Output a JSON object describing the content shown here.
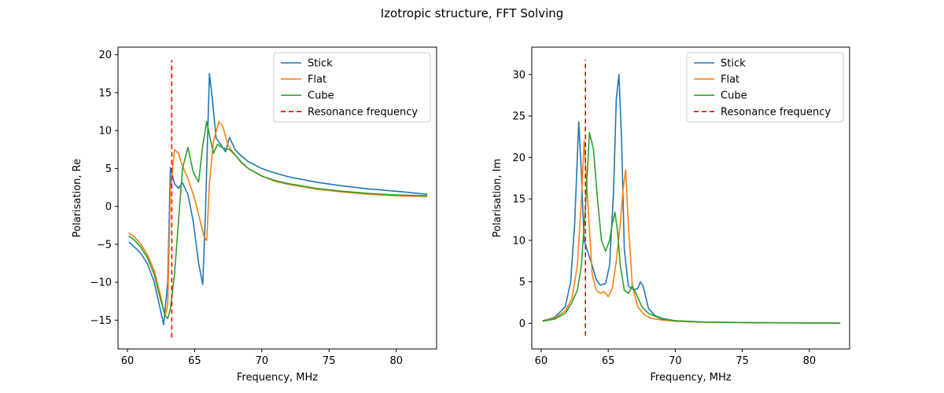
{
  "figure": {
    "title": "Izotropic structure, FFT Solving"
  },
  "colors": {
    "stick": "#1f77b4",
    "flat": "#ff7f0e",
    "cube": "#2ca02c",
    "resonance": "#ff0000"
  },
  "chart_data": [
    {
      "type": "line",
      "xlabel": "Frequency, MHz",
      "ylabel": "Polarisation, Re",
      "xlim": [
        59.3,
        83.0
      ],
      "ylim": [
        -18.8,
        21.0
      ],
      "xticks": [
        60,
        65,
        70,
        75,
        80
      ],
      "yticks": [
        -15,
        -10,
        -5,
        0,
        5,
        10,
        15,
        20
      ],
      "legend": {
        "position": "top-right",
        "entries": [
          "Stick",
          "Flat",
          "Cube",
          "Resonance frequency"
        ]
      },
      "resonance": {
        "x": 63.3,
        "y_range": [
          -17.3,
          19.3
        ],
        "style": "dashed"
      },
      "series": [
        {
          "name": "Stick",
          "x": [
            60.1,
            60.5,
            61,
            61.5,
            62,
            62.4,
            62.7,
            63,
            63.2,
            63.5,
            63.8,
            64.1,
            64.5,
            64.9,
            65.3,
            65.6,
            65.8,
            66.1,
            66.3,
            66.6,
            67,
            67.3,
            67.6,
            68,
            68.5,
            69,
            70,
            71,
            72,
            74,
            76,
            78,
            80,
            82.3
          ],
          "y": [
            -4.7,
            -5.3,
            -6.2,
            -7.6,
            -10,
            -13.2,
            -15.6,
            -10,
            5.1,
            3.0,
            2.4,
            3.1,
            1.6,
            -2,
            -7.5,
            -10.3,
            -1,
            17.5,
            14.5,
            9,
            8,
            7.2,
            9.1,
            7.5,
            6.6,
            5.9,
            5,
            4.4,
            3.9,
            3.2,
            2.7,
            2.3,
            2,
            1.6
          ]
        },
        {
          "name": "Flat",
          "x": [
            60.1,
            60.5,
            61,
            61.5,
            62,
            62.5,
            62.8,
            63,
            63.2,
            63.5,
            63.8,
            64,
            64.3,
            64.6,
            65,
            65.4,
            65.7,
            65.9,
            66.1,
            66.4,
            66.8,
            67.1,
            67.5,
            68,
            68.5,
            69,
            70,
            71,
            72,
            74,
            76,
            78,
            80,
            82.3
          ],
          "y": [
            -3.5,
            -4,
            -5,
            -6.4,
            -8.5,
            -12,
            -14.5,
            -13,
            2,
            7.5,
            7,
            5.8,
            4.5,
            3.2,
            1,
            -1.8,
            -4,
            -4.5,
            3,
            8.5,
            11.2,
            10.5,
            8,
            6.8,
            5.7,
            5,
            4,
            3.3,
            2.9,
            2.3,
            1.9,
            1.6,
            1.4,
            1.3
          ]
        },
        {
          "name": "Cube",
          "x": [
            60.1,
            60.5,
            61,
            61.5,
            62,
            62.5,
            62.8,
            63,
            63.2,
            63.5,
            63.8,
            64.1,
            64.5,
            64.9,
            65.3,
            65.6,
            65.9,
            66.1,
            66.4,
            66.7,
            67,
            67.3,
            67.6,
            68,
            68.5,
            69,
            70,
            71,
            72,
            74,
            76,
            78,
            80,
            82.3
          ],
          "y": [
            -3.9,
            -4.4,
            -5.4,
            -6.8,
            -9,
            -12.5,
            -14.4,
            -14.8,
            -13.5,
            -9,
            -2,
            5,
            7.8,
            4.5,
            3.2,
            8,
            11.2,
            9.5,
            7,
            8.2,
            7.8,
            7.6,
            7.5,
            6.8,
            5.8,
            5,
            4,
            3.4,
            3,
            2.4,
            2,
            1.7,
            1.5,
            1.4
          ]
        }
      ]
    },
    {
      "type": "line",
      "xlabel": "Frequency, MHz",
      "ylabel": "Polarisation, Im",
      "xlim": [
        59.3,
        83.0
      ],
      "ylim": [
        -3.1,
        33.3
      ],
      "xticks": [
        60,
        65,
        70,
        75,
        80
      ],
      "yticks": [
        0,
        5,
        10,
        15,
        20,
        25,
        30
      ],
      "legend": {
        "position": "top-right",
        "entries": [
          "Stick",
          "Flat",
          "Cube",
          "Resonance frequency"
        ]
      },
      "resonance": {
        "x": 63.3,
        "y_range": [
          -1.5,
          31.8
        ],
        "style": "dashed"
      },
      "series": [
        {
          "name": "Stick",
          "x": [
            60.1,
            61,
            61.8,
            62.2,
            62.5,
            62.8,
            63,
            63.2,
            63.5,
            63.8,
            64.1,
            64.4,
            64.8,
            65.1,
            65.4,
            65.6,
            65.8,
            66,
            66.2,
            66.5,
            66.9,
            67.2,
            67.4,
            67.6,
            68,
            68.5,
            69,
            70,
            72,
            76,
            80,
            82.3
          ],
          "y": [
            0.3,
            0.7,
            2,
            5,
            12,
            24.3,
            18,
            10,
            8.5,
            7,
            5.3,
            4.6,
            4.8,
            7,
            16,
            27,
            30,
            22,
            9,
            4.5,
            4,
            4.2,
            5,
            4.5,
            1.8,
            0.9,
            0.6,
            0.3,
            0.15,
            0.08,
            0.05,
            0.03
          ]
        },
        {
          "name": "Flat",
          "x": [
            60.1,
            61,
            61.8,
            62.3,
            62.7,
            63,
            63.2,
            63.5,
            63.8,
            64.1,
            64.4,
            64.7,
            65,
            65.3,
            65.6,
            65.9,
            66.1,
            66.3,
            66.5,
            66.8,
            67.2,
            67.7,
            68.2,
            69,
            70,
            72,
            76,
            80,
            82.3
          ],
          "y": [
            0.3,
            0.6,
            1.5,
            3,
            7,
            15,
            22,
            14,
            6,
            4,
            3.6,
            3.8,
            3.2,
            4.2,
            7.5,
            12,
            16,
            18.5,
            12,
            4.5,
            2,
            1,
            0.6,
            0.4,
            0.25,
            0.12,
            0.06,
            0.04,
            0.02
          ]
        },
        {
          "name": "Cube",
          "x": [
            60.1,
            61,
            61.8,
            62.3,
            62.7,
            63,
            63.3,
            63.6,
            63.9,
            64.2,
            64.5,
            64.8,
            65.1,
            65.3,
            65.5,
            65.7,
            65.9,
            66.2,
            66.5,
            66.8,
            67.1,
            67.5,
            68,
            69,
            70,
            72,
            76,
            80,
            82.3
          ],
          "y": [
            0.25,
            0.5,
            1.2,
            2.5,
            4,
            7,
            14,
            23,
            21,
            15,
            10,
            8.7,
            10,
            12,
            13.4,
            11,
            7,
            4,
            3.6,
            4.5,
            3.5,
            2,
            1.2,
            0.5,
            0.3,
            0.15,
            0.07,
            0.04,
            0.02
          ]
        }
      ]
    }
  ]
}
